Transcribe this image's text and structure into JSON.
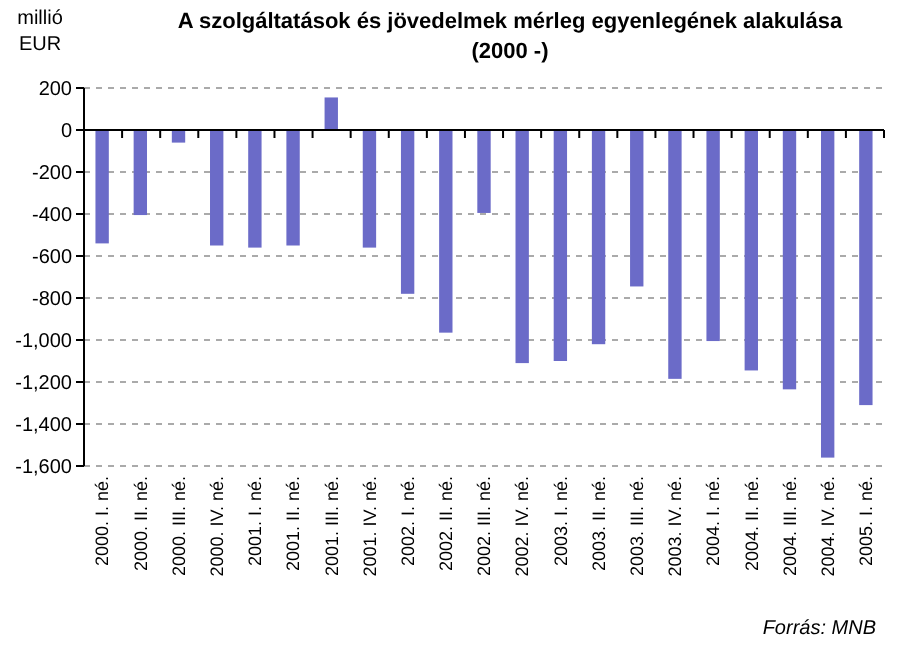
{
  "chart_data": {
    "type": "bar",
    "title": "A szolgáltatások és jövedelmek mérleg egyenlegének alakulása",
    "subtitle": "(2000 -)",
    "ylabel": "millió EUR",
    "categories": [
      "2000. I. né.",
      "2000. II. né.",
      "2000. III. né.",
      "2000. IV. né.",
      "2001. I. né.",
      "2001. II. né.",
      "2001. III. né.",
      "2001. IV. né.",
      "2002. I. né.",
      "2002. II. né.",
      "2002. III. né.",
      "2002. IV. né.",
      "2003. I. né.",
      "2003. II. né.",
      "2003. III. né.",
      "2003. IV. né.",
      "2004. I. né.",
      "2004. II. né.",
      "2004. III. né.",
      "2004. IV. né.",
      "2005. I. né."
    ],
    "values": [
      -540,
      -405,
      -60,
      -550,
      -560,
      -550,
      155,
      -560,
      -780,
      -965,
      -395,
      -1110,
      -1100,
      -1020,
      -745,
      -1185,
      -1005,
      -1145,
      -1235,
      -1560,
      -1310
    ],
    "color": "#6b6bc8",
    "ylim": [
      -1600,
      200
    ],
    "yticks": [
      200,
      0,
      -200,
      -400,
      -600,
      -800,
      {
        "value": -1000,
        "label": "-1,000"
      },
      {
        "value": -1200,
        "label": "-1,200"
      },
      {
        "value": -1400,
        "label": "-1,400"
      },
      {
        "value": -1600,
        "label": "-1,600"
      }
    ],
    "grid": "y",
    "annotations": [
      "Forrás: MNB"
    ]
  }
}
